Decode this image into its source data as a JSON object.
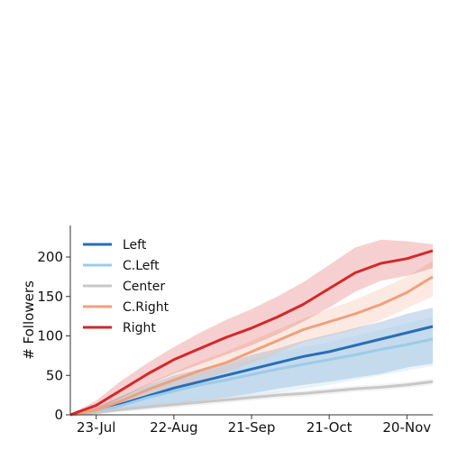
{
  "chart_data": {
    "type": "line",
    "title": "",
    "xlabel": "",
    "ylabel": "# Followers",
    "x_range_days": [
      0,
      140
    ],
    "ylim": [
      0,
      240
    ],
    "x_ticks": [
      {
        "x": 10,
        "label": "23-Jul"
      },
      {
        "x": 40,
        "label": "22-Aug"
      },
      {
        "x": 70,
        "label": "21-Sep"
      },
      {
        "x": 100,
        "label": "21-Oct"
      },
      {
        "x": 130,
        "label": "20-Nov"
      }
    ],
    "y_ticks": [
      0,
      50,
      100,
      150,
      200
    ],
    "legend_position": "top-left",
    "series": [
      {
        "name": "Left",
        "color": "#2a6db5",
        "x": [
          0,
          10,
          20,
          30,
          40,
          50,
          60,
          70,
          80,
          90,
          100,
          110,
          120,
          130,
          140
        ],
        "values": [
          0,
          5,
          14,
          24,
          34,
          42,
          50,
          58,
          66,
          74,
          80,
          88,
          96,
          104,
          112
        ],
        "lower": [
          0,
          2,
          6,
          10,
          14,
          18,
          22,
          27,
          33,
          38,
          42,
          47,
          52,
          60,
          65
        ],
        "upper": [
          1,
          10,
          24,
          38,
          50,
          58,
          66,
          76,
          84,
          94,
          102,
          110,
          118,
          128,
          136
        ]
      },
      {
        "name": "C.Left",
        "color": "#9dcbe8",
        "x": [
          0,
          10,
          20,
          30,
          40,
          50,
          60,
          70,
          80,
          90,
          100,
          110,
          120,
          130,
          140
        ],
        "values": [
          0,
          4,
          12,
          22,
          30,
          38,
          44,
          51,
          58,
          64,
          70,
          76,
          83,
          89,
          96
        ],
        "lower": [
          0,
          1,
          4,
          8,
          12,
          16,
          20,
          24,
          28,
          33,
          38,
          44,
          50,
          56,
          62
        ],
        "upper": [
          1,
          8,
          22,
          36,
          46,
          54,
          62,
          70,
          78,
          86,
          92,
          100,
          108,
          116,
          124
        ]
      },
      {
        "name": "Center",
        "color": "#c8c8c8",
        "x": [
          0,
          10,
          20,
          30,
          40,
          50,
          60,
          70,
          80,
          90,
          100,
          110,
          120,
          130,
          140
        ],
        "values": [
          0,
          3,
          7,
          10,
          13,
          16,
          19,
          22,
          25,
          27,
          30,
          33,
          35,
          38,
          42
        ],
        "lower": [
          0,
          1,
          4,
          6,
          9,
          12,
          15,
          18,
          21,
          23,
          26,
          29,
          31,
          34,
          38
        ],
        "upper": [
          1,
          5,
          10,
          14,
          17,
          20,
          23,
          26,
          29,
          31,
          34,
          37,
          39,
          42,
          46
        ]
      },
      {
        "name": "C.Right",
        "color": "#f0a07c",
        "x": [
          0,
          10,
          20,
          30,
          40,
          50,
          60,
          70,
          80,
          90,
          100,
          110,
          120,
          130,
          140
        ],
        "values": [
          0,
          6,
          18,
          32,
          44,
          56,
          66,
          80,
          94,
          108,
          118,
          128,
          140,
          155,
          175
        ],
        "lower": [
          0,
          3,
          12,
          24,
          34,
          44,
          54,
          66,
          78,
          92,
          100,
          108,
          120,
          135,
          150
        ],
        "upper": [
          1,
          9,
          24,
          40,
          54,
          68,
          80,
          94,
          108,
          122,
          134,
          146,
          160,
          175,
          195
        ]
      },
      {
        "name": "Right",
        "color": "#d62728",
        "x": [
          0,
          10,
          20,
          30,
          40,
          50,
          60,
          70,
          80,
          90,
          100,
          110,
          120,
          130,
          140
        ],
        "values": [
          0,
          12,
          32,
          52,
          70,
          84,
          98,
          110,
          124,
          140,
          160,
          180,
          192,
          198,
          208
        ],
        "lower": [
          0,
          6,
          22,
          38,
          52,
          64,
          76,
          88,
          102,
          118,
          136,
          156,
          170,
          176,
          186
        ],
        "upper": [
          1,
          18,
          44,
          66,
          86,
          104,
          120,
          134,
          150,
          168,
          190,
          212,
          222,
          220,
          216
        ]
      }
    ]
  }
}
